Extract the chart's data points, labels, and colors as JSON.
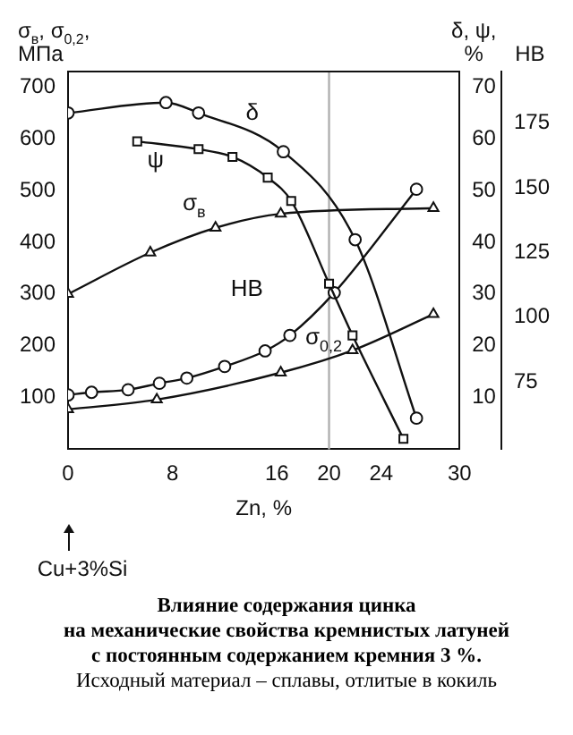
{
  "chart_data": {
    "type": "line",
    "title": "Влияние содержания цинка\nна механические свойства кремнистых латуней\nс постоянным содержанием кремния 3 %.",
    "subtitle": "Исходный материал – сплавы, отлитые в кокиль",
    "xlabel": "Zn, %",
    "ylabel": "σ$_{в}$, σ$_{0,2}$,\nМПа",
    "y2label": "δ, ψ,\n%",
    "y3label": "HB",
    "annotations": [
      "Cu+3%Si"
    ],
    "xlim": [
      0,
      30
    ],
    "xticks": [
      0,
      8,
      16,
      20,
      24,
      30
    ],
    "ylim": [
      0,
      730
    ],
    "yticks": [
      100,
      200,
      300,
      400,
      500,
      600,
      700
    ],
    "y2lim": [
      0,
      73
    ],
    "y2ticks": [
      10,
      20,
      30,
      40,
      50,
      60,
      70
    ],
    "y3lim": [
      49,
      195
    ],
    "y3ticks": [
      75,
      100,
      125,
      150,
      175
    ],
    "ref_lines": [
      {
        "axis": "x",
        "value": 20,
        "color": "#b0b0b0"
      }
    ],
    "grid": false,
    "legend": false,
    "series": [
      {
        "name": "δ",
        "color": "#111111",
        "axis": "y2",
        "marker": "circle",
        "x": [
          0,
          7.5,
          10,
          16.5,
          22,
          26.7
        ],
        "values": [
          65,
          67,
          65,
          57.5,
          40.5,
          6
        ]
      },
      {
        "name": "ψ",
        "color": "#111111",
        "axis": "y2",
        "marker": "square",
        "x": [
          5.3,
          10,
          12.6,
          15.3,
          17.1,
          20,
          21.8,
          25.7
        ],
        "values": [
          59.5,
          58,
          56.5,
          52.5,
          48,
          32,
          22,
          2
        ]
      },
      {
        "name": "σ$_{в}$",
        "color": "#111111",
        "marker": "triangle",
        "x": [
          0,
          6.3,
          11.3,
          16.3,
          28
        ],
        "values": [
          300,
          380,
          428,
          455,
          466
        ]
      },
      {
        "name": "HB",
        "color": "#111111",
        "axis": "y3",
        "marker": "circle",
        "x": [
          0,
          1.8,
          4.6,
          7,
          9.1,
          12,
          15.1,
          17,
          20.4,
          26.7
        ],
        "values": [
          70,
          71,
          72,
          74.5,
          76.5,
          81,
          87,
          93,
          109.5,
          149.5
        ]
      },
      {
        "name": "σ$_{0,2}$",
        "color": "#111111",
        "marker": "triangle",
        "x": [
          0,
          6.8,
          16.3,
          21.8,
          28
        ],
        "values": [
          77,
          96,
          148,
          191,
          261
        ]
      }
    ]
  }
}
